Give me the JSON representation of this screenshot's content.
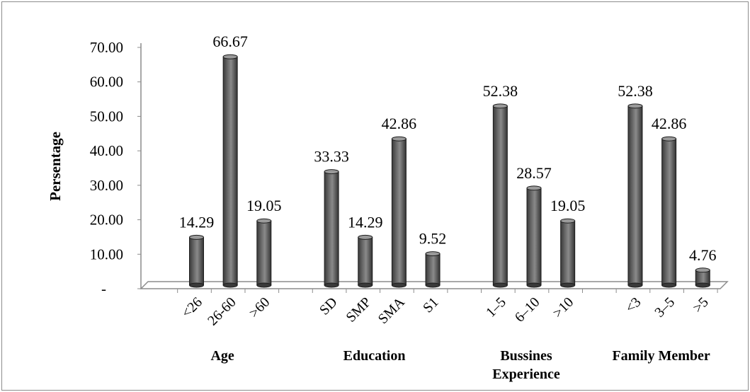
{
  "chart_data": {
    "type": "bar",
    "ylabel": "Persentage",
    "ylim": [
      0,
      70
    ],
    "y_ticks": [
      "-",
      "10.00",
      "20.00",
      "30.00",
      "40.00",
      "50.00",
      "60.00",
      "70.00"
    ],
    "bar_color": "#6e6e6e",
    "style": "3d-cylinder",
    "grid": false,
    "legend": "none",
    "groups": [
      {
        "name": "Age",
        "categories": [
          "<26",
          "26-60",
          ">60"
        ],
        "values": [
          14.29,
          66.67,
          19.05
        ],
        "labels": [
          "14.29",
          "66.67",
          "19.05"
        ]
      },
      {
        "name": "Education",
        "categories": [
          "SD",
          "SMP",
          "SMA",
          "S1"
        ],
        "values": [
          33.33,
          14.29,
          42.86,
          9.52
        ],
        "labels": [
          "33.33",
          "14.29",
          "42.86",
          "9.52"
        ]
      },
      {
        "name": "Bussines Experience",
        "name_lines": [
          "Bussines",
          "Experience"
        ],
        "categories": [
          "1–5",
          "6–10",
          ">10"
        ],
        "values": [
          52.38,
          28.57,
          19.05
        ],
        "labels": [
          "52.38",
          "28.57",
          "19.05"
        ]
      },
      {
        "name": "Family Member",
        "categories": [
          "<3",
          "3–5",
          ">5"
        ],
        "values": [
          52.38,
          42.86,
          4.76
        ],
        "labels": [
          "52.38",
          "42.86",
          "4.76"
        ]
      }
    ]
  }
}
